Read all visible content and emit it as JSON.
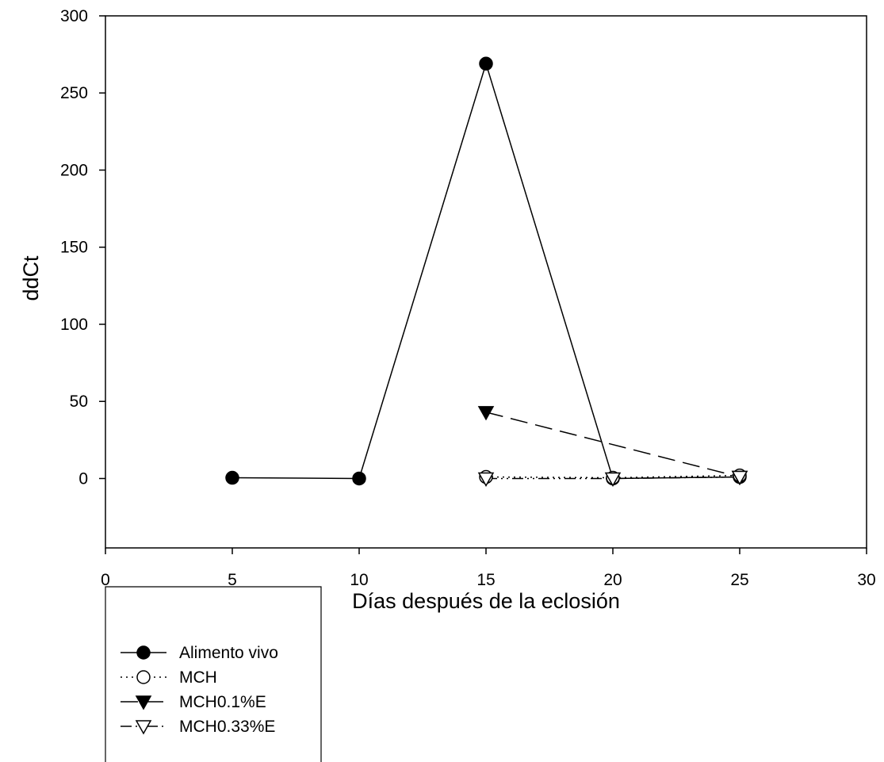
{
  "chart_data": {
    "type": "line",
    "title": "",
    "xlabel": "Días después de la eclosión",
    "ylabel": "ddCt",
    "xlim": [
      0,
      30
    ],
    "ylim": [
      -45,
      300
    ],
    "xticks": [
      0,
      5,
      10,
      15,
      20,
      25,
      30
    ],
    "yticks": [
      0,
      50,
      100,
      150,
      200,
      250,
      300
    ],
    "grid": false,
    "legend_position": "bottom-left, below plot",
    "series": [
      {
        "name": "Alimento vivo",
        "marker": "filled-circle",
        "line": "solid",
        "x": [
          5,
          10,
          15,
          20,
          25
        ],
        "y": [
          0.5,
          0,
          269,
          0,
          1
        ]
      },
      {
        "name": "MCH",
        "marker": "open-circle",
        "line": "dotted",
        "x": [
          15,
          20,
          25
        ],
        "y": [
          1,
          0.5,
          2
        ]
      },
      {
        "name": "MCH0.1%E",
        "marker": "filled-triangle-down",
        "line": "long-dash",
        "x": [
          15,
          20,
          25
        ],
        "y": [
          43,
          null,
          1
        ]
      },
      {
        "name": "MCH0.33%E",
        "marker": "open-triangle-down",
        "line": "dash-dot-dot",
        "x": [
          15,
          20,
          25
        ],
        "y": [
          0,
          0,
          1
        ]
      }
    ]
  }
}
